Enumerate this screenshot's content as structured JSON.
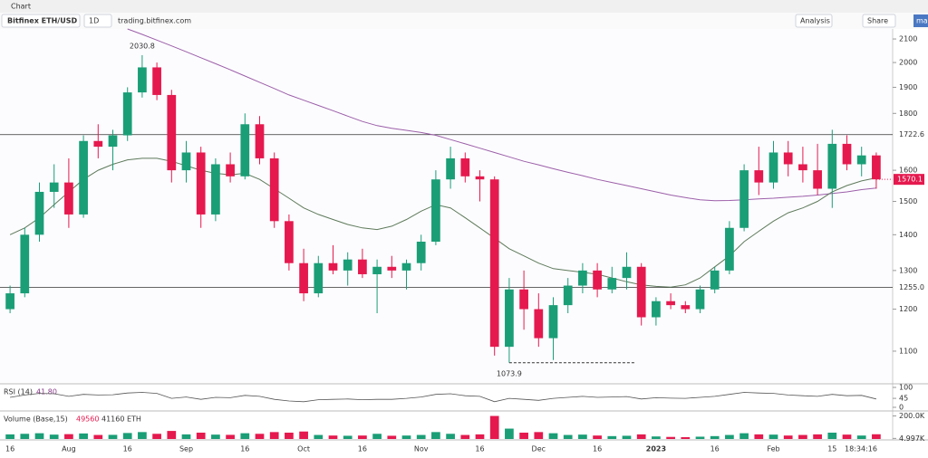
{
  "app": {
    "window_title": "Chart",
    "symbol": "Bitfinex ETH/USD",
    "interval": "1D",
    "link": "trading.bitfinex.com",
    "buttons": [
      "Analysis",
      "Share",
      "main"
    ]
  },
  "chart_data": {
    "type": "candlestick",
    "categories": [
      "16",
      null,
      null,
      null,
      "Aug",
      null,
      null,
      null,
      "16",
      null,
      null,
      null,
      "Sep",
      null,
      null,
      null,
      "16",
      null,
      null,
      null,
      "Oct",
      null,
      null,
      null,
      "16",
      null,
      null,
      null,
      "Nov",
      null,
      null,
      null,
      "16",
      null,
      null,
      null,
      "Dec",
      null,
      null,
      null,
      "16",
      null,
      null,
      null,
      "2023",
      null,
      null,
      null,
      "16",
      null,
      null,
      null,
      "Feb",
      null,
      null,
      null,
      "15",
      null,
      null,
      null
    ],
    "time_label": "18:34:16",
    "open": [
      1200,
      1240,
      1400,
      1530,
      1560,
      1460,
      1700,
      1680,
      1720,
      1880,
      1980,
      1870,
      1600,
      1660,
      1460,
      1620,
      1580,
      1760,
      1640,
      1440,
      1320,
      1240,
      1320,
      1300,
      1330,
      1290,
      1310,
      1300,
      1320,
      1380,
      1570,
      1640,
      1580,
      1570,
      1110,
      1250,
      1200,
      1130,
      1210,
      1260,
      1300,
      1250,
      1280,
      1310,
      1180,
      1220,
      1210,
      1200,
      1250,
      1300,
      1420,
      1600,
      1560,
      1660,
      1620,
      1600,
      1540,
      1690,
      1620,
      1650
    ],
    "high": [
      1260,
      1420,
      1560,
      1620,
      1640,
      1720,
      1760,
      1740,
      1900,
      2030.8,
      2000,
      1890,
      1700,
      1680,
      1640,
      1660,
      1800,
      1790,
      1660,
      1460,
      1360,
      1340,
      1370,
      1350,
      1360,
      1330,
      1340,
      1330,
      1400,
      1600,
      1680,
      1660,
      1600,
      1580,
      1280,
      1300,
      1240,
      1230,
      1280,
      1320,
      1320,
      1310,
      1350,
      1320,
      1230,
      1240,
      1220,
      1260,
      1310,
      1440,
      1620,
      1680,
      1700,
      1700,
      1680,
      1690,
      1740,
      1720,
      1680,
      1660
    ],
    "low": [
      1190,
      1230,
      1380,
      1480,
      1420,
      1450,
      1640,
      1600,
      1700,
      1860,
      1850,
      1560,
      1560,
      1420,
      1440,
      1560,
      1570,
      1620,
      1420,
      1300,
      1220,
      1230,
      1290,
      1260,
      1280,
      1190,
      1280,
      1250,
      1300,
      1370,
      1540,
      1560,
      1500,
      1090,
      1073.9,
      1150,
      1110,
      1080,
      1190,
      1240,
      1230,
      1240,
      1250,
      1160,
      1160,
      1200,
      1190,
      1190,
      1240,
      1290,
      1410,
      1520,
      1540,
      1580,
      1560,
      1520,
      1480,
      1600,
      1580,
      1540
    ],
    "close": [
      1240,
      1400,
      1530,
      1560,
      1460,
      1700,
      1680,
      1720,
      1880,
      1980,
      1870,
      1600,
      1660,
      1460,
      1620,
      1580,
      1760,
      1640,
      1440,
      1320,
      1240,
      1320,
      1300,
      1330,
      1290,
      1310,
      1300,
      1320,
      1380,
      1570,
      1640,
      1580,
      1570,
      1110,
      1250,
      1200,
      1130,
      1210,
      1260,
      1300,
      1250,
      1280,
      1310,
      1180,
      1220,
      1210,
      1200,
      1250,
      1300,
      1420,
      1600,
      1560,
      1660,
      1620,
      1600,
      1540,
      1690,
      1620,
      1650,
      1570.1
    ],
    "up_color": "#1a9e76",
    "down_color": "#e5194e",
    "log_scale": true,
    "ylim": [
      1032,
      2144
    ],
    "yticks": [
      1100,
      1200,
      1300,
      1400,
      1500,
      1600,
      1800,
      1900,
      2000,
      2100
    ],
    "levels": [
      {
        "value": 1722.6,
        "label": "1722.6"
      },
      {
        "value": 1255.0,
        "label": "1255.0"
      }
    ],
    "ma_lines": [
      {
        "color": "#9c5fa8",
        "values": [
          null,
          null,
          null,
          null,
          null,
          null,
          null,
          null,
          2144,
          2120,
          2095,
          2070,
          2045,
          2020,
          1995,
          1970,
          1945,
          1920,
          1895,
          1870,
          1850,
          1830,
          1810,
          1790,
          1770,
          1755,
          1745,
          1738,
          1730,
          1720,
          1705,
          1690,
          1675,
          1660,
          1645,
          1630,
          1618,
          1605,
          1593,
          1582,
          1570,
          1560,
          1550,
          1540,
          1530,
          1520,
          1512,
          1505,
          1502,
          1503,
          1505,
          1508,
          1510,
          1513,
          1516,
          1520,
          1525,
          1530,
          1537,
          1542
        ]
      },
      {
        "color": "#5e7a5a",
        "values": [
          1400,
          1420,
          1450,
          1490,
          1530,
          1570,
          1600,
          1620,
          1635,
          1640,
          1640,
          1630,
          1615,
          1600,
          1590,
          1585,
          1590,
          1570,
          1540,
          1510,
          1480,
          1460,
          1445,
          1430,
          1420,
          1415,
          1425,
          1445,
          1470,
          1490,
          1480,
          1450,
          1420,
          1390,
          1360,
          1340,
          1320,
          1305,
          1300,
          1295,
          1290,
          1280,
          1270,
          1262,
          1258,
          1256,
          1262,
          1280,
          1310,
          1340,
          1380,
          1410,
          1440,
          1465,
          1480,
          1500,
          1530,
          1550,
          1565,
          1575
        ]
      }
    ],
    "rsi": {
      "title": "RSI (14)",
      "current_label": "41.80",
      "color": "#555555",
      "ylim": [
        0,
        100
      ],
      "yticks": [
        0,
        45,
        100
      ],
      "values": [
        50,
        62,
        70,
        68,
        55,
        65,
        62,
        63,
        72,
        75,
        70,
        45,
        52,
        40,
        50,
        48,
        60,
        55,
        40,
        32,
        28,
        38,
        40,
        42,
        38,
        40,
        40,
        45,
        52,
        65,
        68,
        58,
        55,
        28,
        45,
        40,
        35,
        45,
        50,
        55,
        50,
        52,
        54,
        42,
        48,
        46,
        45,
        50,
        55,
        65,
        75,
        72,
        70,
        62,
        58,
        55,
        65,
        58,
        60,
        41.8
      ]
    },
    "volume": {
      "title": "Volume (Base,15)",
      "labels": [
        "49560",
        "41160 ETH"
      ],
      "ylim": [
        0,
        220000
      ],
      "yticks": [
        {
          "value": 4997,
          "label": "4.997K"
        },
        {
          "value": 200000,
          "label": "200.0K"
        }
      ],
      "values": [
        40000,
        45000,
        50000,
        38000,
        42000,
        48000,
        35000,
        36000,
        52000,
        60000,
        45000,
        70000,
        40000,
        55000,
        38000,
        36000,
        50000,
        45000,
        60000,
        55000,
        65000,
        35000,
        30000,
        28000,
        30000,
        45000,
        28000,
        30000,
        35000,
        60000,
        45000,
        35000,
        40000,
        200000,
        90000,
        55000,
        60000,
        50000,
        35000,
        38000,
        30000,
        25000,
        28000,
        40000,
        22000,
        18000,
        16000,
        20000,
        25000,
        35000,
        50000,
        40000,
        38000,
        30000,
        35000,
        40000,
        55000,
        38000,
        30000,
        41160
      ]
    }
  }
}
